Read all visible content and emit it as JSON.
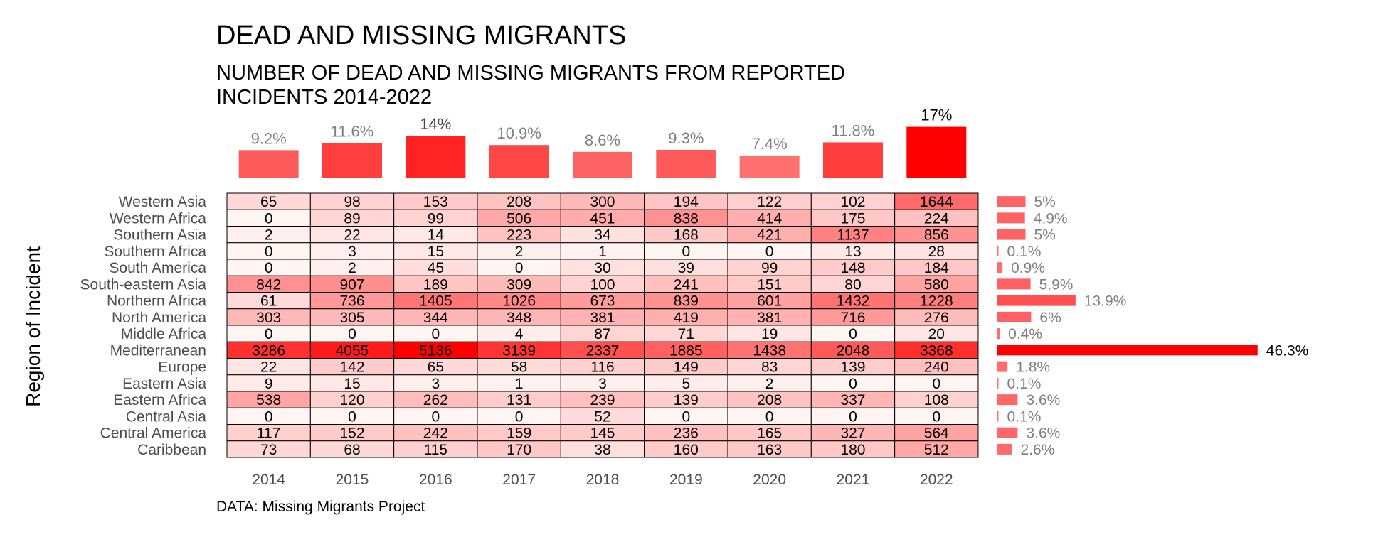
{
  "chart_data": {
    "type": "heatmap",
    "title": "DEAD AND MISSING MIGRANTS",
    "subtitle_lines": [
      "NUMBER OF DEAD AND MISSING MIGRANTS FROM REPORTED",
      "INCIDENTS 2014-2022"
    ],
    "ylabel": "Region of Incident",
    "caption": "DATA: Missing Migrants Project",
    "years": [
      "2014",
      "2015",
      "2016",
      "2017",
      "2018",
      "2019",
      "2020",
      "2021",
      "2022"
    ],
    "year_share": [
      {
        "value": 9.2,
        "label": "9.2%"
      },
      {
        "value": 11.6,
        "label": "11.6%"
      },
      {
        "value": 14,
        "label": "14%"
      },
      {
        "value": 10.9,
        "label": "10.9%"
      },
      {
        "value": 8.6,
        "label": "8.6%"
      },
      {
        "value": 9.3,
        "label": "9.3%"
      },
      {
        "value": 7.4,
        "label": "7.4%"
      },
      {
        "value": 11.8,
        "label": "11.8%"
      },
      {
        "value": 17,
        "label": "17%"
      }
    ],
    "regions": [
      {
        "name": "Western Asia",
        "values": [
          65,
          98,
          153,
          208,
          300,
          194,
          122,
          102,
          1644
        ],
        "share": 5,
        "share_label": "5%"
      },
      {
        "name": "Western Africa",
        "values": [
          0,
          89,
          99,
          506,
          451,
          838,
          414,
          175,
          224
        ],
        "share": 4.9,
        "share_label": "4.9%"
      },
      {
        "name": "Southern Asia",
        "values": [
          2,
          22,
          14,
          223,
          34,
          168,
          421,
          1137,
          856
        ],
        "share": 5,
        "share_label": "5%"
      },
      {
        "name": "Southern Africa",
        "values": [
          0,
          3,
          15,
          2,
          1,
          0,
          0,
          13,
          28
        ],
        "share": 0.1,
        "share_label": "0.1%"
      },
      {
        "name": "South America",
        "values": [
          0,
          2,
          45,
          0,
          30,
          39,
          99,
          148,
          184
        ],
        "share": 0.9,
        "share_label": "0.9%"
      },
      {
        "name": "South-eastern Asia",
        "values": [
          842,
          907,
          189,
          309,
          100,
          241,
          151,
          80,
          580
        ],
        "share": 5.9,
        "share_label": "5.9%"
      },
      {
        "name": "Northern Africa",
        "values": [
          61,
          736,
          1405,
          1026,
          673,
          839,
          601,
          1432,
          1228
        ],
        "share": 13.9,
        "share_label": "13.9%"
      },
      {
        "name": "North America",
        "values": [
          303,
          305,
          344,
          348,
          381,
          419,
          381,
          716,
          276
        ],
        "share": 6,
        "share_label": "6%"
      },
      {
        "name": "Middle Africa",
        "values": [
          0,
          0,
          0,
          4,
          87,
          71,
          19,
          0,
          20
        ],
        "share": 0.4,
        "share_label": "0.4%"
      },
      {
        "name": "Mediterranean",
        "values": [
          3286,
          4055,
          5136,
          3139,
          2337,
          1885,
          1438,
          2048,
          3368
        ],
        "share": 46.3,
        "share_label": "46.3%"
      },
      {
        "name": "Europe",
        "values": [
          22,
          142,
          65,
          58,
          116,
          149,
          83,
          139,
          240
        ],
        "share": 1.8,
        "share_label": "1.8%"
      },
      {
        "name": "Eastern Asia",
        "values": [
          9,
          15,
          3,
          1,
          3,
          5,
          2,
          0,
          0
        ],
        "share": 0.1,
        "share_label": "0.1%"
      },
      {
        "name": "Eastern Africa",
        "values": [
          538,
          120,
          262,
          131,
          239,
          139,
          208,
          337,
          108
        ],
        "share": 3.6,
        "share_label": "3.6%"
      },
      {
        "name": "Central Asia",
        "values": [
          0,
          0,
          0,
          0,
          52,
          0,
          0,
          0,
          0
        ],
        "share": 0.1,
        "share_label": "0.1%"
      },
      {
        "name": "Central America",
        "values": [
          117,
          152,
          242,
          159,
          145,
          236,
          165,
          327,
          564
        ],
        "share": 3.6,
        "share_label": "3.6%"
      },
      {
        "name": "Caribbean",
        "values": [
          73,
          68,
          115,
          170,
          38,
          160,
          163,
          180,
          512
        ],
        "share": 2.6,
        "share_label": "2.6%"
      }
    ],
    "colors": {
      "cell_high": "#ff0000",
      "cell_low": "#fff5f3",
      "bar_high": "#ff0000",
      "bar_low": "#ff7070",
      "label_muted": "#808080",
      "label_strong": "#000000",
      "grid_line": "#000000"
    }
  }
}
